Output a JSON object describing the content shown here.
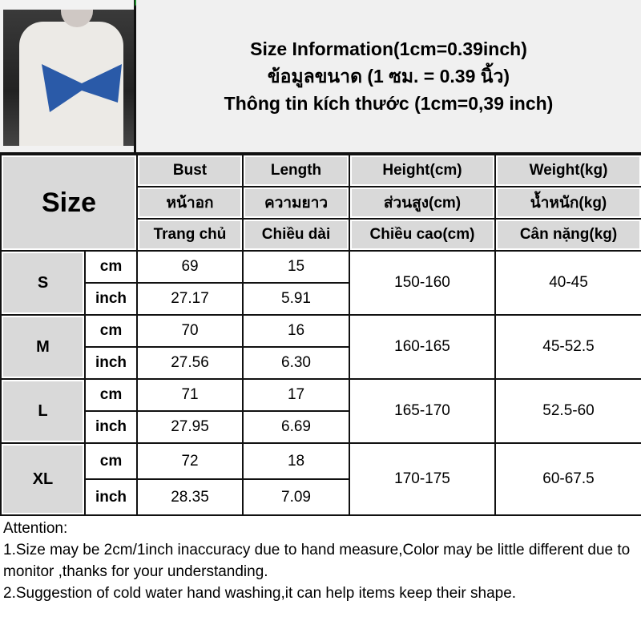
{
  "title": {
    "line1": "Size Information(1cm=0.39inch)",
    "line2": "ข้อมูลขนาด (1 ซม. = 0.39 นิ้ว)",
    "line3": "Thông tin kích thước (1cm=0,39 inch)"
  },
  "photo": {
    "icon": "product-photo-girl-white-shirt-blue-bow-top",
    "bow_color": "#2a5aa8"
  },
  "table": {
    "size_header": "Size",
    "columns": [
      {
        "en": "Bust",
        "th": "หน้าอก",
        "vi": "Trang chủ"
      },
      {
        "en": "Length",
        "th": "ความยาว",
        "vi": "Chiều dài"
      },
      {
        "en": "Height(cm)",
        "th": "ส่วนสูง(cm)",
        "vi": "Chiều cao(cm)"
      },
      {
        "en": "Weight(kg)",
        "th": "น้ำหนัก(kg)",
        "vi": "Cân nặng(kg)"
      }
    ],
    "rows": [
      {
        "size": "S",
        "cm_label": "cm",
        "inch_label": "inch",
        "bust_cm": "69",
        "length_cm": "15",
        "bust_inch": "27.17",
        "length_inch": "5.91",
        "height": "150-160",
        "weight": "40-45"
      },
      {
        "size": "M",
        "cm_label": "cm",
        "inch_label": "inch",
        "bust_cm": "70",
        "length_cm": "16",
        "bust_inch": "27.56",
        "length_inch": "6.30",
        "height": "160-165",
        "weight": "45-52.5"
      },
      {
        "size": "L",
        "cm_label": "cm",
        "inch_label": "inch",
        "bust_cm": "71",
        "length_cm": "17",
        "bust_inch": "27.95",
        "length_inch": "6.69",
        "height": "165-170",
        "weight": "52.5-60"
      },
      {
        "size": "XL",
        "cm_label": "cm",
        "inch_label": "inch",
        "bust_cm": "72",
        "length_cm": "18",
        "bust_inch": "28.35",
        "length_inch": "7.09",
        "height": "170-175",
        "weight": "60-67.5"
      }
    ]
  },
  "notes": {
    "heading": "Attention:",
    "line1": "1.Size may be 2cm/1inch inaccuracy due to hand measure,Color may be little different due to monitor ,thanks for your understanding.",
    "line2": "2.Suggestion of cold water hand washing,it can help items keep their shape."
  }
}
